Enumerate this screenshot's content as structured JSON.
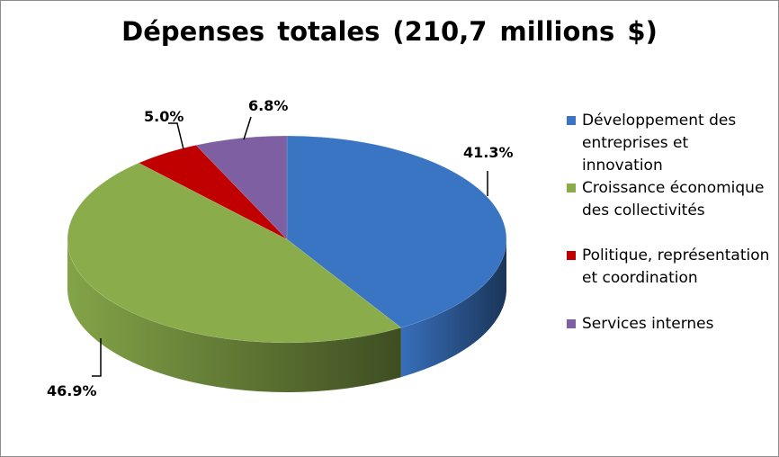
{
  "chart_data": {
    "type": "pie",
    "title": "Dépenses  totales (210,7 millions $)",
    "legend_position": "right",
    "series": [
      {
        "name": "Développement des entreprises et innovation",
        "value": 41.3,
        "label": "41.3%",
        "color": "#3a75c4"
      },
      {
        "name": "Croissance économique des collectivités",
        "value": 46.9,
        "label": "46.9%",
        "color": "#8aac4b"
      },
      {
        "name": "Politique, représentation et coordination",
        "value": 5.0,
        "label": "5.0%",
        "color": "#c00000"
      },
      {
        "name": "Services internes",
        "value": 6.8,
        "label": "6.8%",
        "color": "#7e5fa2"
      }
    ]
  }
}
